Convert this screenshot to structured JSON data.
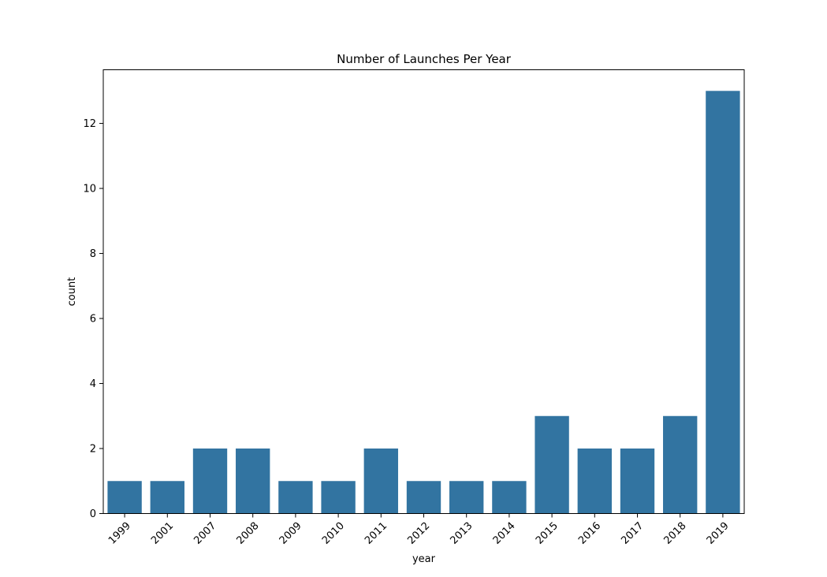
{
  "chart_data": {
    "type": "bar",
    "title": "Number of Launches Per Year",
    "xlabel": "year",
    "ylabel": "count",
    "categories": [
      "1999",
      "2001",
      "2007",
      "2008",
      "2009",
      "2010",
      "2011",
      "2012",
      "2013",
      "2014",
      "2015",
      "2016",
      "2017",
      "2018",
      "2019"
    ],
    "values": [
      1,
      1,
      2,
      2,
      1,
      1,
      2,
      1,
      1,
      1,
      3,
      2,
      2,
      3,
      13
    ],
    "ylim": [
      0,
      13.65
    ],
    "yticks": [
      0,
      2,
      4,
      6,
      8,
      10,
      12
    ],
    "grid": false,
    "bar_color": "#3274a1",
    "x_tick_rotation": "45"
  }
}
